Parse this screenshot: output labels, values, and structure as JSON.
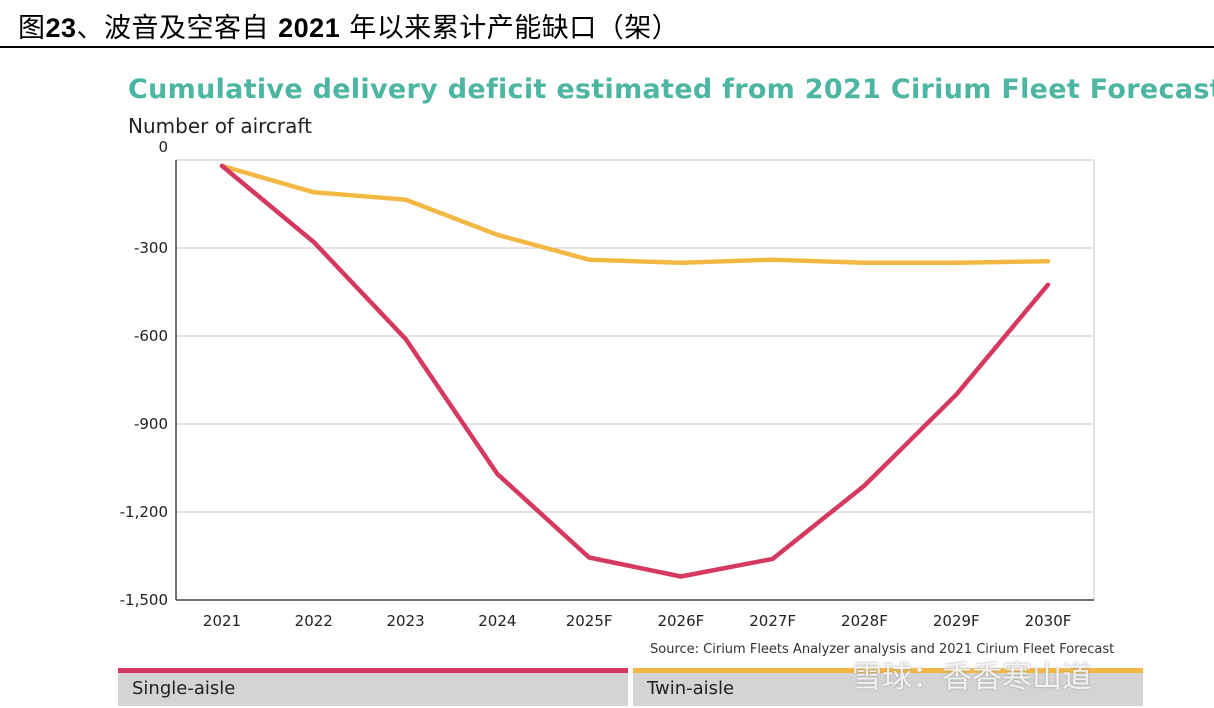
{
  "figure": {
    "prefix": "图",
    "number": "23",
    "title_mid": "、波音及空客自 ",
    "year": "2021",
    "title_end": " 年以来累计产能缺口（架）"
  },
  "chart_data": {
    "type": "line",
    "title": "Cumulative delivery deficit estimated from 2021 Cirium Fleet Forecast",
    "ylabel": "Number of aircraft",
    "xlabel": "",
    "categories": [
      "2021",
      "2022",
      "2023",
      "2024",
      "2025F",
      "2026F",
      "2027F",
      "2028F",
      "2029F",
      "2030F"
    ],
    "yticks": [
      "0",
      "-300",
      "-600",
      "-900",
      "-1,200",
      "-1,500"
    ],
    "ylim": [
      -1500,
      0
    ],
    "grid": true,
    "series": [
      {
        "name": "Single-aisle",
        "color": "#d6395f",
        "values": [
          -20,
          -280,
          -610,
          -1070,
          -1355,
          -1420,
          -1360,
          -1110,
          -800,
          -425
        ]
      },
      {
        "name": "Twin-aisle",
        "color": "#f2b843",
        "values": [
          -20,
          -110,
          -135,
          -255,
          -340,
          -350,
          -340,
          -350,
          -350,
          -345
        ]
      }
    ],
    "legend_placement": "bottom",
    "source": "Source: Cirium Fleets Analyzer analysis and 2021 Cirium Fleet Forecast"
  },
  "watermark": "雪球：香香寒山道"
}
